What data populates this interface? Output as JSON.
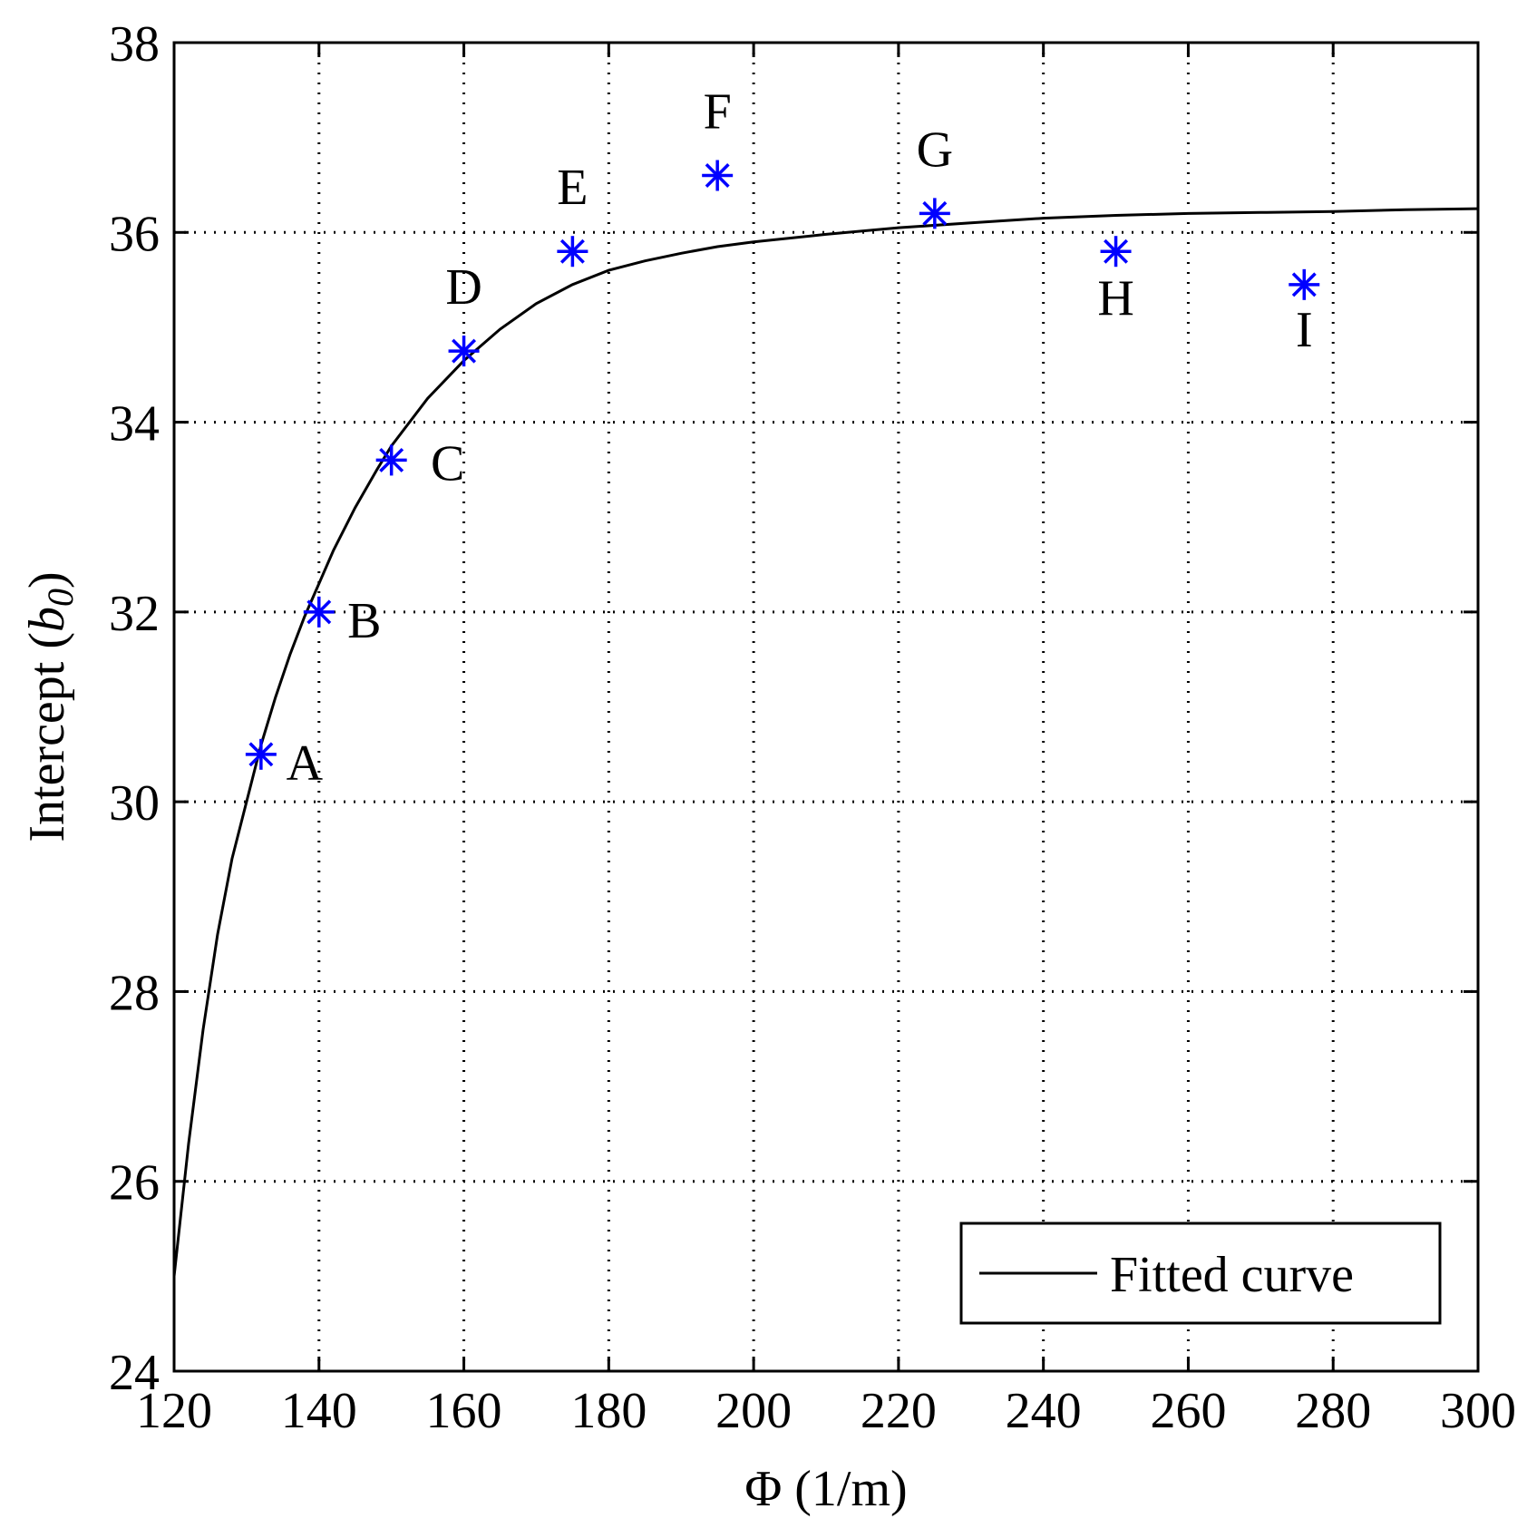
{
  "chart_data": {
    "type": "scatter",
    "title": "",
    "xlabel": "Φ (1/m)",
    "ylabel_main": "Intercept (",
    "ylabel_symbol": "b",
    "ylabel_subscript": "0",
    "ylabel_close": ")",
    "xlim": [
      120,
      300
    ],
    "ylim": [
      24,
      38
    ],
    "xticks": [
      120,
      140,
      160,
      180,
      200,
      220,
      240,
      260,
      280,
      300
    ],
    "yticks": [
      24,
      26,
      28,
      30,
      32,
      34,
      36,
      38
    ],
    "grid": true,
    "legend": {
      "placement": "bottom-right",
      "entries": [
        "Fitted curve"
      ]
    },
    "colors": {
      "points": "#0000ff",
      "curve": "#000000",
      "grid": "#000000"
    },
    "series": [
      {
        "name": "",
        "type": "scatter",
        "marker": "asterisk",
        "points": [
          {
            "label": "A",
            "x": 132,
            "y": 30.5
          },
          {
            "label": "B",
            "x": 140,
            "y": 32.0
          },
          {
            "label": "C",
            "x": 150,
            "y": 33.6
          },
          {
            "label": "D",
            "x": 160,
            "y": 34.75
          },
          {
            "label": "E",
            "x": 175,
            "y": 35.8
          },
          {
            "label": "F",
            "x": 195,
            "y": 36.6
          },
          {
            "label": "G",
            "x": 225,
            "y": 36.2
          },
          {
            "label": "H",
            "x": 250,
            "y": 35.8
          },
          {
            "label": "I",
            "x": 276,
            "y": 35.45
          }
        ]
      },
      {
        "name": "Fitted curve",
        "type": "line",
        "x": [
          120,
          122,
          124,
          126,
          128,
          130,
          132,
          134,
          136,
          138,
          140,
          142,
          145,
          148,
          150,
          155,
          160,
          165,
          170,
          175,
          180,
          185,
          190,
          195,
          200,
          210,
          220,
          230,
          240,
          250,
          260,
          270,
          280,
          290,
          300
        ],
        "y": [
          25.0,
          26.4,
          27.6,
          28.6,
          29.4,
          30.0,
          30.6,
          31.1,
          31.55,
          31.95,
          32.3,
          32.65,
          33.1,
          33.5,
          33.75,
          34.25,
          34.65,
          34.98,
          35.25,
          35.45,
          35.6,
          35.7,
          35.78,
          35.85,
          35.9,
          35.98,
          36.05,
          36.1,
          36.15,
          36.18,
          36.2,
          36.21,
          36.22,
          36.24,
          36.25
        ]
      }
    ]
  }
}
